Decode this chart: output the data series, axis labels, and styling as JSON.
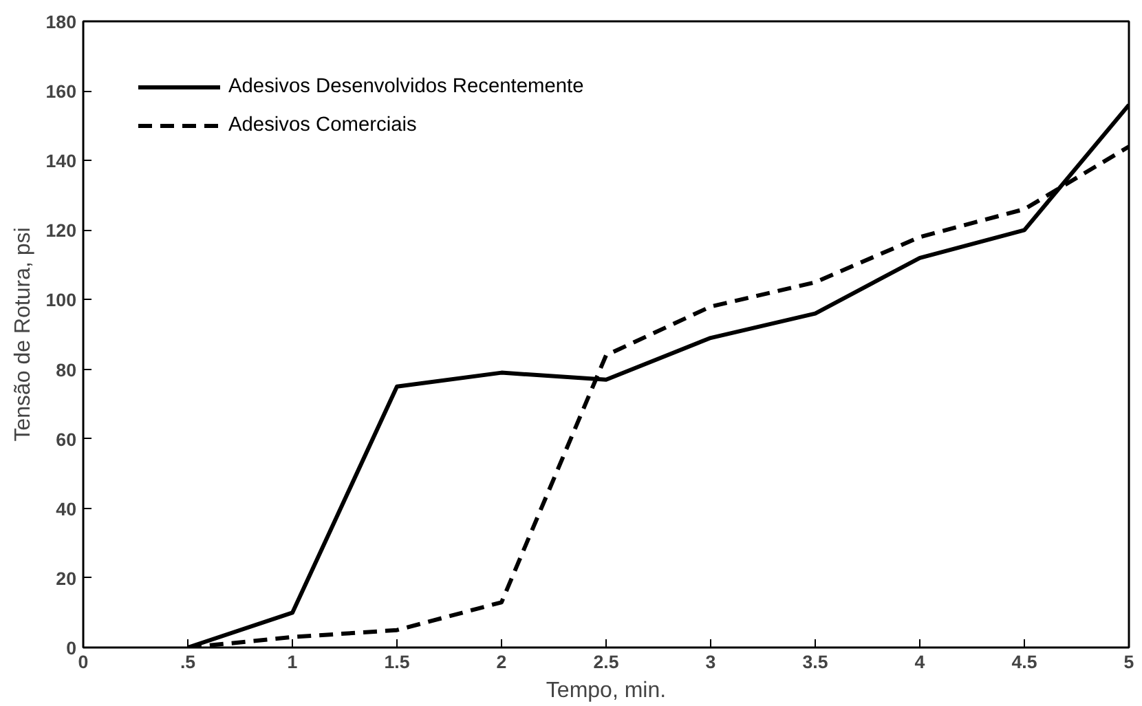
{
  "chart_data": {
    "type": "line",
    "xlabel": "Tempo, min.",
    "ylabel": "Tensão de Rotura, psi",
    "x": [
      0.5,
      1,
      1.5,
      2,
      2.5,
      3,
      3.5,
      4,
      4.5,
      5
    ],
    "series": [
      {
        "name": "Adesivos Desenvolvidos Recentemente",
        "color": "#000000",
        "line_style": "solid",
        "values": [
          0,
          10,
          75,
          79,
          77,
          89,
          96,
          112,
          120,
          156
        ]
      },
      {
        "name": "Adesivos Comerciais",
        "color": "#000000",
        "line_style": "dashed",
        "values": [
          0,
          3,
          5,
          13,
          84,
          98,
          105,
          118,
          126,
          144
        ]
      }
    ],
    "xlim": [
      0,
      5
    ],
    "ylim": [
      0,
      180
    ],
    "xticks": [
      0,
      {
        "value": 0.5,
        "label": ".5"
      },
      1,
      {
        "value": 1.5,
        "label": "1.5"
      },
      2,
      {
        "value": 2.5,
        "label": "2.5"
      },
      3,
      {
        "value": 3.5,
        "label": "3.5"
      },
      4,
      {
        "value": 4.5,
        "label": "4.5"
      },
      5
    ],
    "yticks": [
      0,
      20,
      40,
      60,
      80,
      100,
      120,
      140,
      160,
      180
    ],
    "grid": false,
    "legend": "top left",
    "marker": "none"
  }
}
